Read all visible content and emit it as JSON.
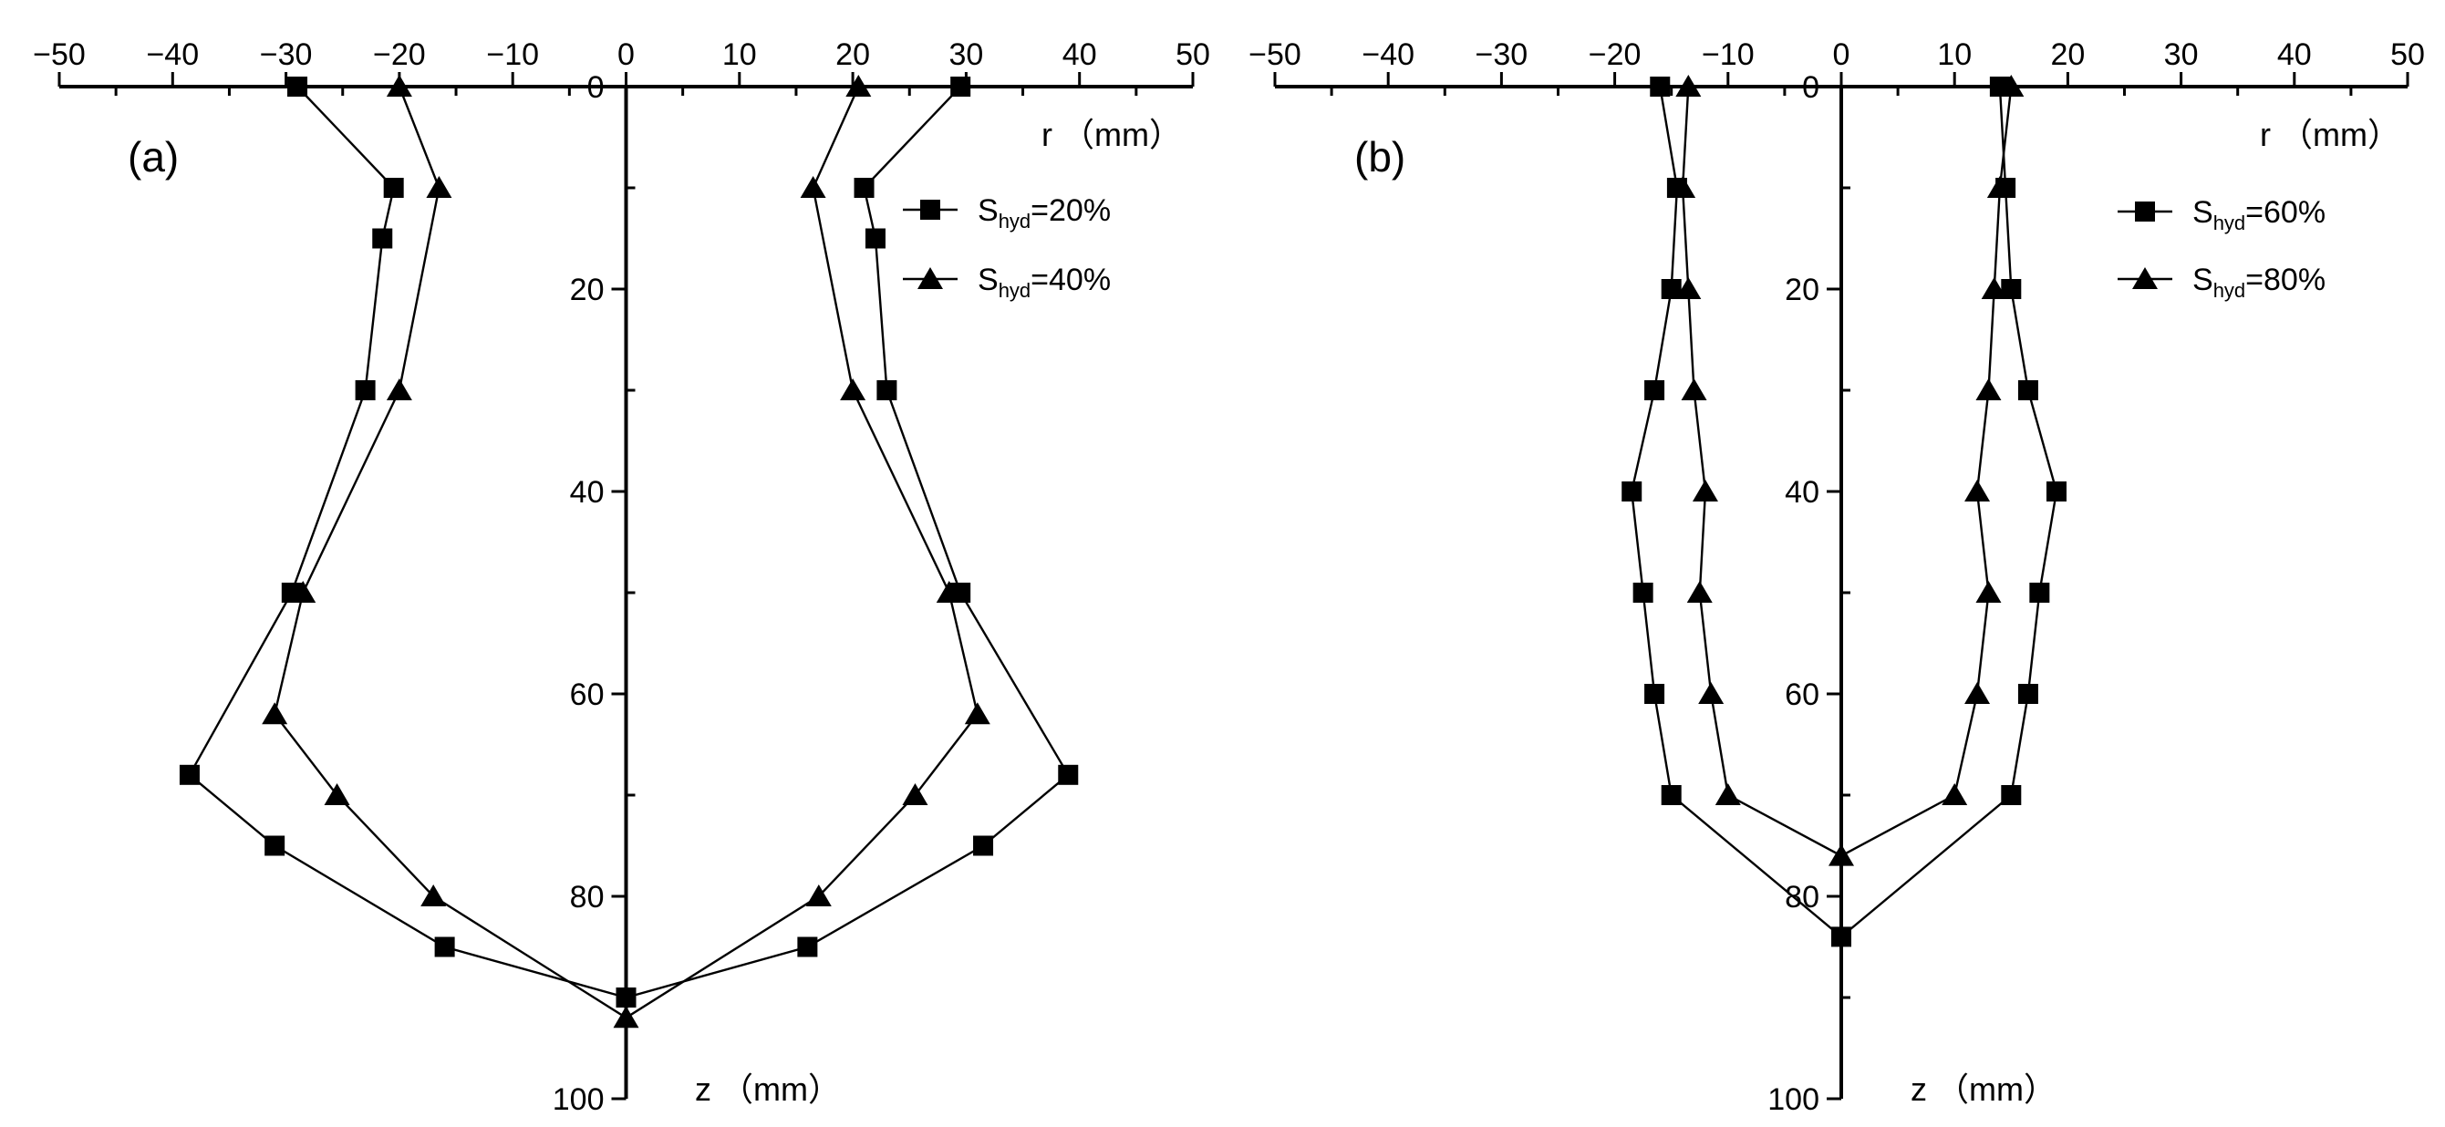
{
  "chart_data": [
    {
      "type": "line",
      "panel_label": "(a)",
      "r_axis_label": "r （mm）",
      "z_axis_label": "z （mm）",
      "xlim": [
        -50,
        50
      ],
      "ylim": [
        0,
        100
      ],
      "x_ticks": [
        -50,
        -40,
        -30,
        -20,
        -10,
        0,
        10,
        20,
        30,
        40,
        50
      ],
      "x_tick_labels": [
        "−50",
        "−40",
        "−30",
        "−20",
        "−10",
        "0",
        "10",
        "20",
        "30",
        "40",
        "50"
      ],
      "y_ticks": [
        0,
        20,
        40,
        60,
        80,
        100
      ],
      "y_tick_labels": [
        "0",
        "20",
        "40",
        "60",
        "80",
        "100"
      ],
      "y_inverted": true,
      "legend_position": "top-right",
      "series": [
        {
          "name": "S_hyd=20%",
          "label_base": "S",
          "label_sub": "hyd",
          "label_rest": "=20%",
          "marker": "square",
          "r": [
            -29,
            -20.5,
            -21.5,
            -23,
            -29.5,
            -38.5,
            -31,
            -16,
            0,
            16,
            31.5,
            39,
            29.5,
            23,
            22,
            21,
            29.5
          ],
          "z": [
            0,
            10,
            15,
            30,
            50,
            68,
            75,
            85,
            90,
            85,
            75,
            68,
            50,
            30,
            15,
            10,
            0
          ]
        },
        {
          "name": "S_hyd=40%",
          "label_base": "S",
          "label_sub": "hyd",
          "label_rest": "=40%",
          "marker": "triangle",
          "r": [
            -20,
            -16.5,
            -20,
            -28.5,
            -31,
            -25.5,
            -17,
            0,
            17,
            25.5,
            31,
            28.5,
            20,
            16.5,
            20.5
          ],
          "z": [
            0,
            10,
            30,
            50,
            62,
            70,
            80,
            92,
            80,
            70,
            62,
            50,
            30,
            10,
            0
          ]
        }
      ]
    },
    {
      "type": "line",
      "panel_label": "(b)",
      "r_axis_label": "r （mm）",
      "z_axis_label": "z （mm）",
      "xlim": [
        -50,
        50
      ],
      "ylim": [
        0,
        100
      ],
      "x_ticks": [
        -50,
        -40,
        -30,
        -20,
        -10,
        0,
        10,
        20,
        30,
        40,
        50
      ],
      "x_tick_labels": [
        "−50",
        "−40",
        "−30",
        "−20",
        "−10",
        "0",
        "10",
        "20",
        "30",
        "40",
        "50"
      ],
      "y_ticks": [
        0,
        20,
        40,
        60,
        80,
        100
      ],
      "y_tick_labels": [
        "0",
        "20",
        "40",
        "60",
        "80",
        "100"
      ],
      "y_inverted": true,
      "legend_position": "top-right",
      "series": [
        {
          "name": "S_hyd=60%",
          "label_base": "S",
          "label_sub": "hyd",
          "label_rest": "=60%",
          "marker": "square",
          "r": [
            -16,
            -14.5,
            -15,
            -16.5,
            -18.5,
            -17.5,
            -16.5,
            -15,
            0,
            15,
            16.5,
            17.5,
            19,
            16.5,
            15,
            14.5,
            14
          ],
          "z": [
            0,
            10,
            20,
            30,
            40,
            50,
            60,
            70,
            84,
            70,
            60,
            50,
            40,
            30,
            20,
            10,
            0
          ]
        },
        {
          "name": "S_hyd=80%",
          "label_base": "S",
          "label_sub": "hyd",
          "label_rest": "=80%",
          "marker": "triangle",
          "r": [
            -13.5,
            -14,
            -13.5,
            -13,
            -12,
            -12.5,
            -11.5,
            -10,
            0,
            10,
            12,
            13,
            12,
            13,
            13.5,
            14,
            15
          ],
          "z": [
            0,
            10,
            20,
            30,
            40,
            50,
            60,
            70,
            76,
            70,
            60,
            50,
            40,
            30,
            20,
            10,
            0
          ]
        }
      ]
    }
  ]
}
